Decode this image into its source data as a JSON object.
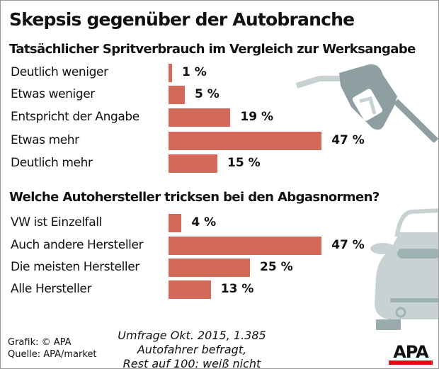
{
  "title": "Skepsis gegenüber der Autobranche",
  "colors": {
    "bar": "#d4695a",
    "illustration": "#9aabad",
    "logo_red": "#e30613"
  },
  "chart_data": [
    {
      "type": "bar",
      "orientation": "horizontal",
      "title": "Tatsächlicher Spritverbrauch im Vergleich zur Werksangabe",
      "categories": [
        "Deutlich weniger",
        "Etwas weniger",
        "Entspricht der Angabe",
        "Etwas mehr",
        "Deutlich mehr"
      ],
      "values": [
        1,
        5,
        19,
        47,
        15
      ],
      "labels": [
        "1 %",
        "5 %",
        "19 %",
        "47 %",
        "15 %"
      ],
      "unit": "%"
    },
    {
      "type": "bar",
      "orientation": "horizontal",
      "title": "Welche Autohersteller tricksen bei den Abgasnormen?",
      "categories": [
        "VW ist Einzelfall",
        "Auch andere Hersteller",
        "Die meisten Hersteller",
        "Alle Hersteller"
      ],
      "values": [
        4,
        47,
        25,
        13
      ],
      "labels": [
        "4 %",
        "47 %",
        "25 %",
        "13 %"
      ],
      "unit": "%"
    }
  ],
  "footer": {
    "credit": "Grafik: © APA",
    "source": "Quelle: APA/market",
    "note_line1": "Umfrage Okt. 2015, 1.385 Autofahrer befragt,",
    "note_line2": "Rest auf 100: weiß nicht",
    "logo": "APA"
  }
}
